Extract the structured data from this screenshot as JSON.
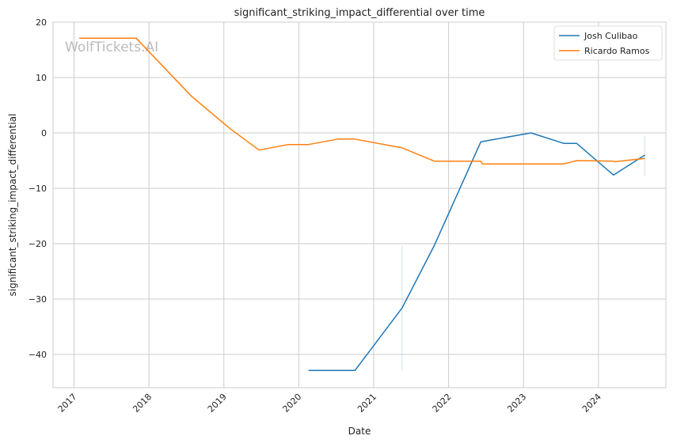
{
  "chart_data": {
    "type": "line",
    "title": "significant_striking_impact_differential over time",
    "xlabel": "Date",
    "ylabel": "significant_striking_impact_differential",
    "xlim": [
      2016.72,
      2024.9
    ],
    "ylim": [
      -46,
      20
    ],
    "x_ticks": [
      2017,
      2018,
      2019,
      2020,
      2021,
      2022,
      2023,
      2024
    ],
    "x_tick_labels": [
      "2017",
      "2018",
      "2019",
      "2020",
      "2021",
      "2022",
      "2023",
      "2024"
    ],
    "y_ticks": [
      20,
      10,
      0,
      -10,
      -20,
      -30,
      -40
    ],
    "y_tick_labels": [
      "20",
      "10",
      "0",
      "−10",
      "−20",
      "−30",
      "−40"
    ],
    "grid": true,
    "legend_position": "top-right",
    "watermark": "WolfTickets.AI",
    "series": [
      {
        "name": "Josh Culibao",
        "color": "#1f77b4",
        "x": [
          2020.13,
          2020.75,
          2021.38,
          2021.81,
          2022.43,
          2023.1,
          2023.54,
          2023.71,
          2024.2,
          2024.62
        ],
        "y": [
          -42.9,
          -42.9,
          -31.6,
          -20.3,
          -1.6,
          0.0,
          -1.9,
          -1.9,
          -7.6,
          -4.0
        ]
      },
      {
        "name": "Ricardo Ramos",
        "color": "#ff7f0e",
        "x": [
          2017.07,
          2017.83,
          2018.57,
          2019.07,
          2019.47,
          2019.86,
          2020.13,
          2020.53,
          2020.74,
          2021.38,
          2021.81,
          2022.43,
          2022.45,
          2023.54,
          2023.71,
          2024.2,
          2024.22,
          2024.62
        ],
        "y": [
          17.1,
          17.1,
          6.6,
          0.9,
          -3.1,
          -2.1,
          -2.1,
          -1.1,
          -1.1,
          -2.7,
          -5.1,
          -5.1,
          -5.6,
          -5.6,
          -5.0,
          -5.1,
          -5.2,
          -4.6
        ]
      }
    ],
    "error_ranges": [
      {
        "x": 2021.38,
        "low": -43.0,
        "high": -20.5
      },
      {
        "x": 2024.62,
        "low": -7.8,
        "high": -0.6
      }
    ]
  }
}
